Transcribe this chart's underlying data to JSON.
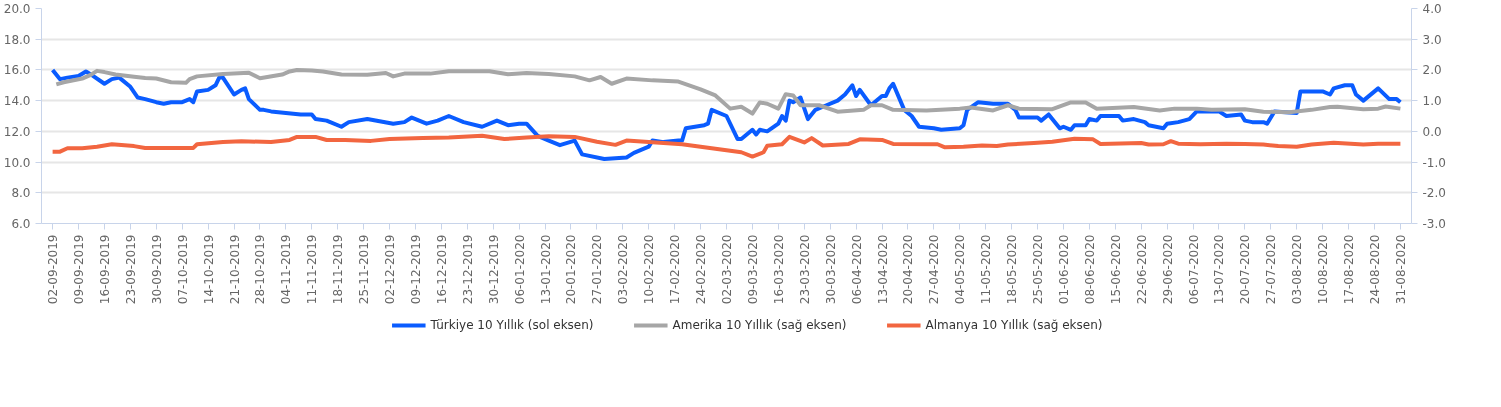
{
  "chart_data": {
    "type": "line",
    "xlim": [
      "2019-08-30",
      "2020-09-03"
    ],
    "xticks": [
      {
        "value": "2019-09-02",
        "label": "02-09-2019"
      },
      {
        "value": "2019-09-09",
        "label": "09-09-2019"
      },
      {
        "value": "2019-09-16",
        "label": "16-09-2019"
      },
      {
        "value": "2019-09-23",
        "label": "23-09-2019"
      },
      {
        "value": "2019-09-30",
        "label": "30-09-2019"
      },
      {
        "value": "2019-10-07",
        "label": "07-10-2019"
      },
      {
        "value": "2019-10-14",
        "label": "14-10-2019"
      },
      {
        "value": "2019-10-21",
        "label": "21-10-2019"
      },
      {
        "value": "2019-10-28",
        "label": "28-10-2019"
      },
      {
        "value": "2019-11-04",
        "label": "04-11-2019"
      },
      {
        "value": "2019-11-11",
        "label": "11-11-2019"
      },
      {
        "value": "2019-11-18",
        "label": "18-11-2019"
      },
      {
        "value": "2019-11-25",
        "label": "25-11-2019"
      },
      {
        "value": "2019-12-02",
        "label": "02-12-2019"
      },
      {
        "value": "2019-12-09",
        "label": "09-12-2019"
      },
      {
        "value": "2019-12-16",
        "label": "16-12-2019"
      },
      {
        "value": "2019-12-23",
        "label": "23-12-2019"
      },
      {
        "value": "2019-12-30",
        "label": "30-12-2019"
      },
      {
        "value": "2020-01-06",
        "label": "06-01-2020"
      },
      {
        "value": "2020-01-13",
        "label": "13-01-2020"
      },
      {
        "value": "2020-01-20",
        "label": "20-01-2020"
      },
      {
        "value": "2020-01-27",
        "label": "27-01-2020"
      },
      {
        "value": "2020-02-03",
        "label": "03-02-2020"
      },
      {
        "value": "2020-02-10",
        "label": "10-02-2020"
      },
      {
        "value": "2020-02-17",
        "label": "17-02-2020"
      },
      {
        "value": "2020-02-24",
        "label": "24-02-2020"
      },
      {
        "value": "2020-03-02",
        "label": "02-03-2020"
      },
      {
        "value": "2020-03-09",
        "label": "09-03-2020"
      },
      {
        "value": "2020-03-16",
        "label": "16-03-2020"
      },
      {
        "value": "2020-03-23",
        "label": "23-03-2020"
      },
      {
        "value": "2020-03-30",
        "label": "30-03-2020"
      },
      {
        "value": "2020-04-06",
        "label": "06-04-2020"
      },
      {
        "value": "2020-04-13",
        "label": "13-04-2020"
      },
      {
        "value": "2020-04-20",
        "label": "20-04-2020"
      },
      {
        "value": "2020-04-27",
        "label": "27-04-2020"
      },
      {
        "value": "2020-05-04",
        "label": "04-05-2020"
      },
      {
        "value": "2020-05-11",
        "label": "11-05-2020"
      },
      {
        "value": "2020-05-18",
        "label": "18-05-2020"
      },
      {
        "value": "2020-05-25",
        "label": "25-05-2020"
      },
      {
        "value": "2020-06-01",
        "label": "01-06-2020"
      },
      {
        "value": "2020-06-08",
        "label": "08-06-2020"
      },
      {
        "value": "2020-06-15",
        "label": "15-06-2020"
      },
      {
        "value": "2020-06-22",
        "label": "22-06-2020"
      },
      {
        "value": "2020-06-29",
        "label": "29-06-2020"
      },
      {
        "value": "2020-07-06",
        "label": "06-07-2020"
      },
      {
        "value": "2020-07-13",
        "label": "13-07-2020"
      },
      {
        "value": "2020-07-20",
        "label": "20-07-2020"
      },
      {
        "value": "2020-07-27",
        "label": "27-07-2020"
      },
      {
        "value": "2020-08-03",
        "label": "03-08-2020"
      },
      {
        "value": "2020-08-10",
        "label": "10-08-2020"
      },
      {
        "value": "2020-08-17",
        "label": "17-08-2020"
      },
      {
        "value": "2020-08-24",
        "label": "24-08-2020"
      },
      {
        "value": "2020-08-31",
        "label": "31-08-2020"
      }
    ],
    "ylim": [
      6,
      20
    ],
    "yticks": [
      {
        "value": 6,
        "label": "6.0"
      },
      {
        "value": 8,
        "label": "8.0"
      },
      {
        "value": 10,
        "label": "10.0"
      },
      {
        "value": 12,
        "label": "12.0"
      },
      {
        "value": 14,
        "label": "14.0"
      },
      {
        "value": 16,
        "label": "16.0"
      },
      {
        "value": 18,
        "label": "18.0"
      },
      {
        "value": 20,
        "label": "20.0"
      }
    ],
    "y2lim": [
      -3,
      4
    ],
    "y2ticks": [
      {
        "value": -3,
        "label": "-3.0"
      },
      {
        "value": -2,
        "label": "-2.0"
      },
      {
        "value": -1,
        "label": "-1.0"
      },
      {
        "value": 0,
        "label": "0.0"
      },
      {
        "value": 1,
        "label": "1.0"
      },
      {
        "value": 2,
        "label": "2.0"
      },
      {
        "value": 3,
        "label": "3.0"
      },
      {
        "value": 4,
        "label": "4.0"
      }
    ],
    "grid": "y",
    "legend": "bottom",
    "series": [
      {
        "name": "Türkiye 10 Yıllık (sol eksen)",
        "color": "#0a5cff",
        "x": [
          "2019-09-02",
          "2019-09-04",
          "2019-09-06",
          "2019-09-09",
          "2019-09-11",
          "2019-09-13",
          "2019-09-16",
          "2019-09-18",
          "2019-09-20",
          "2019-09-23",
          "2019-09-25",
          "2019-09-27",
          "2019-09-30",
          "2019-10-02",
          "2019-10-04",
          "2019-10-07",
          "2019-10-09",
          "2019-10-10",
          "2019-10-11",
          "2019-10-14",
          "2019-10-16",
          "2019-10-17",
          "2019-10-18",
          "2019-10-21",
          "2019-10-23",
          "2019-10-24",
          "2019-10-25",
          "2019-10-28",
          "2019-10-29",
          "2019-10-31",
          "2019-11-04",
          "2019-11-08",
          "2019-11-11",
          "2019-11-12",
          "2019-11-15",
          "2019-11-19",
          "2019-11-21",
          "2019-11-26",
          "2019-12-03",
          "2019-12-06",
          "2019-12-08",
          "2019-12-12",
          "2019-12-15",
          "2019-12-18",
          "2019-12-22",
          "2019-12-27",
          "2019-12-31",
          "2020-01-03",
          "2020-01-06",
          "2020-01-08",
          "2020-01-11",
          "2020-01-14",
          "2020-01-17",
          "2020-01-21",
          "2020-01-23",
          "2020-01-29",
          "2020-02-04",
          "2020-02-06",
          "2020-02-10",
          "2020-02-11",
          "2020-02-14",
          "2020-02-18",
          "2020-02-19",
          "2020-02-20",
          "2020-02-25",
          "2020-02-26",
          "2020-02-27",
          "2020-03-02",
          "2020-03-05",
          "2020-03-06",
          "2020-03-09",
          "2020-03-10",
          "2020-03-11",
          "2020-03-13",
          "2020-03-16",
          "2020-03-17",
          "2020-03-18",
          "2020-03-19",
          "2020-03-20",
          "2020-03-22",
          "2020-03-24",
          "2020-03-26",
          "2020-03-29",
          "2020-04-01",
          "2020-04-03",
          "2020-04-05",
          "2020-04-06",
          "2020-04-07",
          "2020-04-10",
          "2020-04-13",
          "2020-04-14",
          "2020-04-15",
          "2020-04-16",
          "2020-04-19",
          "2020-04-21",
          "2020-04-23",
          "2020-04-27",
          "2020-04-29",
          "2020-05-04",
          "2020-05-05",
          "2020-05-06",
          "2020-05-09",
          "2020-05-13",
          "2020-05-17",
          "2020-05-19",
          "2020-05-20",
          "2020-05-25",
          "2020-05-26",
          "2020-05-28",
          "2020-05-31",
          "2020-06-01",
          "2020-06-03",
          "2020-06-04",
          "2020-06-07",
          "2020-06-08",
          "2020-06-10",
          "2020-06-11",
          "2020-06-16",
          "2020-06-17",
          "2020-06-20",
          "2020-06-23",
          "2020-06-24",
          "2020-06-28",
          "2020-06-29",
          "2020-07-02",
          "2020-07-05",
          "2020-07-07",
          "2020-07-13",
          "2020-07-15",
          "2020-07-19",
          "2020-07-20",
          "2020-07-22",
          "2020-07-25",
          "2020-07-26",
          "2020-07-28",
          "2020-08-03",
          "2020-08-04",
          "2020-08-10",
          "2020-08-12",
          "2020-08-13",
          "2020-08-16",
          "2020-08-18",
          "2020-08-19",
          "2020-08-21",
          "2020-08-25",
          "2020-08-28",
          "2020-08-30",
          "2020-08-31"
        ],
        "values": [
          16.0,
          15.4,
          15.5,
          15.6,
          15.9,
          15.6,
          15.1,
          15.4,
          15.5,
          14.9,
          14.2,
          14.1,
          13.9,
          13.8,
          13.9,
          13.9,
          14.1,
          13.9,
          14.6,
          14.7,
          15.0,
          15.5,
          15.5,
          14.4,
          14.7,
          14.8,
          14.1,
          13.4,
          13.4,
          13.3,
          13.2,
          13.1,
          13.1,
          12.8,
          12.7,
          12.3,
          12.6,
          12.8,
          12.5,
          12.6,
          12.9,
          12.5,
          12.7,
          13.0,
          12.6,
          12.3,
          12.7,
          12.4,
          12.5,
          12.5,
          11.7,
          11.4,
          11.1,
          11.4,
          10.5,
          10.2,
          10.3,
          10.6,
          11.0,
          11.4,
          11.3,
          11.4,
          11.4,
          12.2,
          12.4,
          12.5,
          13.4,
          13.0,
          11.5,
          11.5,
          12.1,
          11.8,
          12.1,
          12.0,
          12.5,
          13.0,
          12.7,
          14.0,
          13.9,
          14.2,
          12.8,
          13.4,
          13.7,
          14.0,
          14.4,
          15.0,
          14.3,
          14.7,
          13.7,
          14.3,
          14.3,
          14.8,
          15.1,
          13.4,
          13.0,
          12.3,
          12.2,
          12.1,
          12.2,
          12.4,
          13.4,
          13.9,
          13.8,
          13.8,
          13.4,
          12.9,
          12.9,
          12.7,
          13.1,
          12.2,
          12.3,
          12.1,
          12.4,
          12.4,
          12.8,
          12.7,
          13.0,
          13.0,
          12.7,
          12.8,
          12.6,
          12.4,
          12.2,
          12.5,
          12.6,
          12.8,
          13.3,
          13.3,
          13.0,
          13.1,
          12.7,
          12.6,
          12.6,
          12.5,
          13.3,
          13.2,
          14.6,
          14.6,
          14.4,
          14.8,
          15.0,
          15.0,
          14.4,
          14.0,
          14.8,
          14.1,
          14.1,
          13.9
        ]
      },
      {
        "name": "Amerika 10 Yıllık (sağ eksen)",
        "color": "#a6a6a6",
        "axis": "y2",
        "x": [
          "2019-09-03",
          "2019-09-05",
          "2019-09-10",
          "2019-09-12",
          "2019-09-14",
          "2019-09-16",
          "2019-09-19",
          "2019-09-24",
          "2019-09-27",
          "2019-09-30",
          "2019-10-04",
          "2019-10-08",
          "2019-10-09",
          "2019-10-11",
          "2019-10-18",
          "2019-10-25",
          "2019-10-28",
          "2019-11-03",
          "2019-11-05",
          "2019-11-07",
          "2019-11-11",
          "2019-11-14",
          "2019-11-19",
          "2019-11-26",
          "2019-12-01",
          "2019-12-03",
          "2019-12-06",
          "2019-12-13",
          "2019-12-18",
          "2019-12-29",
          "2020-01-03",
          "2020-01-08",
          "2020-01-14",
          "2020-01-21",
          "2020-01-25",
          "2020-01-28",
          "2020-01-31",
          "2020-02-04",
          "2020-02-11",
          "2020-02-18",
          "2020-02-24",
          "2020-02-28",
          "2020-03-03",
          "2020-03-06",
          "2020-03-09",
          "2020-03-11",
          "2020-03-13",
          "2020-03-16",
          "2020-03-18",
          "2020-03-20",
          "2020-03-22",
          "2020-03-27",
          "2020-04-01",
          "2020-04-08",
          "2020-04-10",
          "2020-04-13",
          "2020-04-16",
          "2020-04-25",
          "2020-05-04",
          "2020-05-07",
          "2020-05-13",
          "2020-05-17",
          "2020-05-20",
          "2020-05-29",
          "2020-06-03",
          "2020-06-07",
          "2020-06-10",
          "2020-06-20",
          "2020-06-27",
          "2020-07-01",
          "2020-07-07",
          "2020-07-11",
          "2020-07-20",
          "2020-07-25",
          "2020-08-01",
          "2020-08-07",
          "2020-08-12",
          "2020-08-14",
          "2020-08-21",
          "2020-08-25",
          "2020-08-27",
          "2020-08-31"
        ],
        "values": [
          1.53,
          1.6,
          1.72,
          1.82,
          1.97,
          1.93,
          1.85,
          1.78,
          1.74,
          1.72,
          1.6,
          1.58,
          1.7,
          1.79,
          1.87,
          1.91,
          1.73,
          1.85,
          1.95,
          2.0,
          1.98,
          1.95,
          1.85,
          1.84,
          1.9,
          1.79,
          1.88,
          1.88,
          1.96,
          1.96,
          1.86,
          1.9,
          1.87,
          1.79,
          1.66,
          1.77,
          1.55,
          1.72,
          1.66,
          1.62,
          1.37,
          1.17,
          0.74,
          0.8,
          0.58,
          0.94,
          0.9,
          0.74,
          1.21,
          1.17,
          0.85,
          0.85,
          0.64,
          0.7,
          0.85,
          0.85,
          0.7,
          0.68,
          0.74,
          0.78,
          0.68,
          0.85,
          0.74,
          0.72,
          0.94,
          0.94,
          0.74,
          0.79,
          0.68,
          0.74,
          0.74,
          0.7,
          0.72,
          0.64,
          0.62,
          0.7,
          0.79,
          0.8,
          0.72,
          0.74,
          0.81,
          0.74
        ]
      },
      {
        "name": "Almanya 10 Yıllık (sağ eksen)",
        "color": "#f26640",
        "axis": "y2",
        "x": [
          "2019-09-02",
          "2019-09-04",
          "2019-09-06",
          "2019-09-10",
          "2019-09-14",
          "2019-09-18",
          "2019-09-24",
          "2019-09-27",
          "2019-10-05",
          "2019-10-10",
          "2019-10-11",
          "2019-10-18",
          "2019-10-23",
          "2019-10-31",
          "2019-11-05",
          "2019-11-07",
          "2019-11-12",
          "2019-11-15",
          "2019-11-20",
          "2019-11-27",
          "2019-12-02",
          "2019-12-11",
          "2019-12-18",
          "2019-12-27",
          "2020-01-02",
          "2020-01-08",
          "2020-01-14",
          "2020-01-21",
          "2020-01-27",
          "2020-02-01",
          "2020-02-04",
          "2020-02-10",
          "2020-02-19",
          "2020-02-24",
          "2020-02-29",
          "2020-03-06",
          "2020-03-09",
          "2020-03-12",
          "2020-03-13",
          "2020-03-17",
          "2020-03-19",
          "2020-03-23",
          "2020-03-25",
          "2020-03-28",
          "2020-04-04",
          "2020-04-07",
          "2020-04-13",
          "2020-04-16",
          "2020-04-28",
          "2020-04-30",
          "2020-05-05",
          "2020-05-10",
          "2020-05-14",
          "2020-05-17",
          "2020-05-24",
          "2020-05-29",
          "2020-06-04",
          "2020-06-09",
          "2020-06-11",
          "2020-06-22",
          "2020-06-24",
          "2020-06-28",
          "2020-06-30",
          "2020-07-02",
          "2020-07-08",
          "2020-07-15",
          "2020-07-20",
          "2020-07-25",
          "2020-07-29",
          "2020-08-03",
          "2020-08-07",
          "2020-08-13",
          "2020-08-21",
          "2020-08-25",
          "2020-08-31"
        ],
        "values": [
          -0.66,
          -0.66,
          -0.55,
          -0.55,
          -0.5,
          -0.42,
          -0.48,
          -0.54,
          -0.54,
          -0.54,
          -0.42,
          -0.35,
          -0.32,
          -0.35,
          -0.28,
          -0.18,
          -0.18,
          -0.28,
          -0.28,
          -0.31,
          -0.25,
          -0.22,
          -0.2,
          -0.14,
          -0.25,
          -0.2,
          -0.16,
          -0.18,
          -0.34,
          -0.44,
          -0.3,
          -0.35,
          -0.42,
          -0.5,
          -0.58,
          -0.68,
          -0.82,
          -0.68,
          -0.47,
          -0.42,
          -0.18,
          -0.36,
          -0.22,
          -0.46,
          -0.41,
          -0.26,
          -0.28,
          -0.41,
          -0.42,
          -0.52,
          -0.5,
          -0.46,
          -0.48,
          -0.43,
          -0.38,
          -0.34,
          -0.24,
          -0.26,
          -0.41,
          -0.38,
          -0.43,
          -0.42,
          -0.32,
          -0.4,
          -0.42,
          -0.4,
          -0.41,
          -0.43,
          -0.48,
          -0.5,
          -0.43,
          -0.37,
          -0.43,
          -0.4,
          -0.4
        ]
      }
    ]
  }
}
